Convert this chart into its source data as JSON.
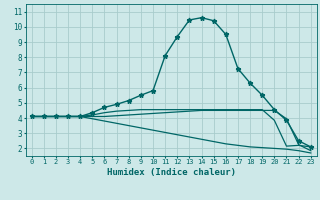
{
  "bg_color": "#cde8e8",
  "grid_color": "#a8cccc",
  "line_color": "#006666",
  "xlabel": "Humidex (Indice chaleur)",
  "xlim": [
    -0.5,
    23.5
  ],
  "ylim": [
    1.5,
    11.5
  ],
  "xticks": [
    0,
    1,
    2,
    3,
    4,
    5,
    6,
    7,
    8,
    9,
    10,
    11,
    12,
    13,
    14,
    15,
    16,
    17,
    18,
    19,
    20,
    21,
    22,
    23
  ],
  "yticks": [
    2,
    3,
    4,
    5,
    6,
    7,
    8,
    9,
    10,
    11
  ],
  "series": [
    {
      "x": [
        0,
        1,
        2,
        3,
        4,
        5,
        6,
        7,
        8,
        9,
        10,
        11,
        12,
        13,
        14,
        15,
        16,
        17,
        18,
        19,
        20,
        21,
        22,
        23
      ],
      "y": [
        4.1,
        4.1,
        4.1,
        4.1,
        4.1,
        4.35,
        4.7,
        4.9,
        5.15,
        5.5,
        5.8,
        8.1,
        9.35,
        10.45,
        10.6,
        10.4,
        9.5,
        7.25,
        6.3,
        5.5,
        4.55,
        3.85,
        2.5,
        2.1
      ],
      "marker": "*",
      "markersize": 3.5,
      "linewidth": 1.0
    },
    {
      "x": [
        0,
        1,
        2,
        3,
        4,
        5,
        6,
        7,
        8,
        9,
        10,
        11,
        12,
        13,
        14,
        15,
        16,
        17,
        18,
        19,
        20,
        21,
        22,
        23
      ],
      "y": [
        4.1,
        4.1,
        4.1,
        4.1,
        4.1,
        4.2,
        4.35,
        4.45,
        4.5,
        4.55,
        4.55,
        4.55,
        4.55,
        4.55,
        4.55,
        4.55,
        4.55,
        4.55,
        4.55,
        4.55,
        3.85,
        2.15,
        2.2,
        2.1
      ],
      "marker": null,
      "linewidth": 0.9
    },
    {
      "x": [
        0,
        1,
        2,
        3,
        4,
        5,
        6,
        7,
        8,
        9,
        10,
        11,
        12,
        13,
        14,
        15,
        16,
        17,
        18,
        19,
        20,
        21,
        22,
        23
      ],
      "y": [
        4.1,
        4.1,
        4.1,
        4.1,
        4.1,
        4.1,
        4.1,
        4.15,
        4.2,
        4.25,
        4.3,
        4.35,
        4.4,
        4.45,
        4.5,
        4.5,
        4.5,
        4.5,
        4.5,
        4.5,
        4.5,
        3.95,
        2.25,
        1.85
      ],
      "marker": null,
      "linewidth": 0.9
    },
    {
      "x": [
        0,
        1,
        2,
        3,
        4,
        5,
        6,
        7,
        8,
        9,
        10,
        11,
        12,
        13,
        14,
        15,
        16,
        17,
        18,
        19,
        20,
        21,
        22,
        23
      ],
      "y": [
        4.1,
        4.1,
        4.1,
        4.1,
        4.1,
        3.95,
        3.8,
        3.65,
        3.5,
        3.35,
        3.2,
        3.05,
        2.9,
        2.75,
        2.6,
        2.45,
        2.3,
        2.2,
        2.1,
        2.05,
        2.0,
        1.95,
        1.85,
        1.7
      ],
      "marker": null,
      "linewidth": 0.9
    }
  ]
}
